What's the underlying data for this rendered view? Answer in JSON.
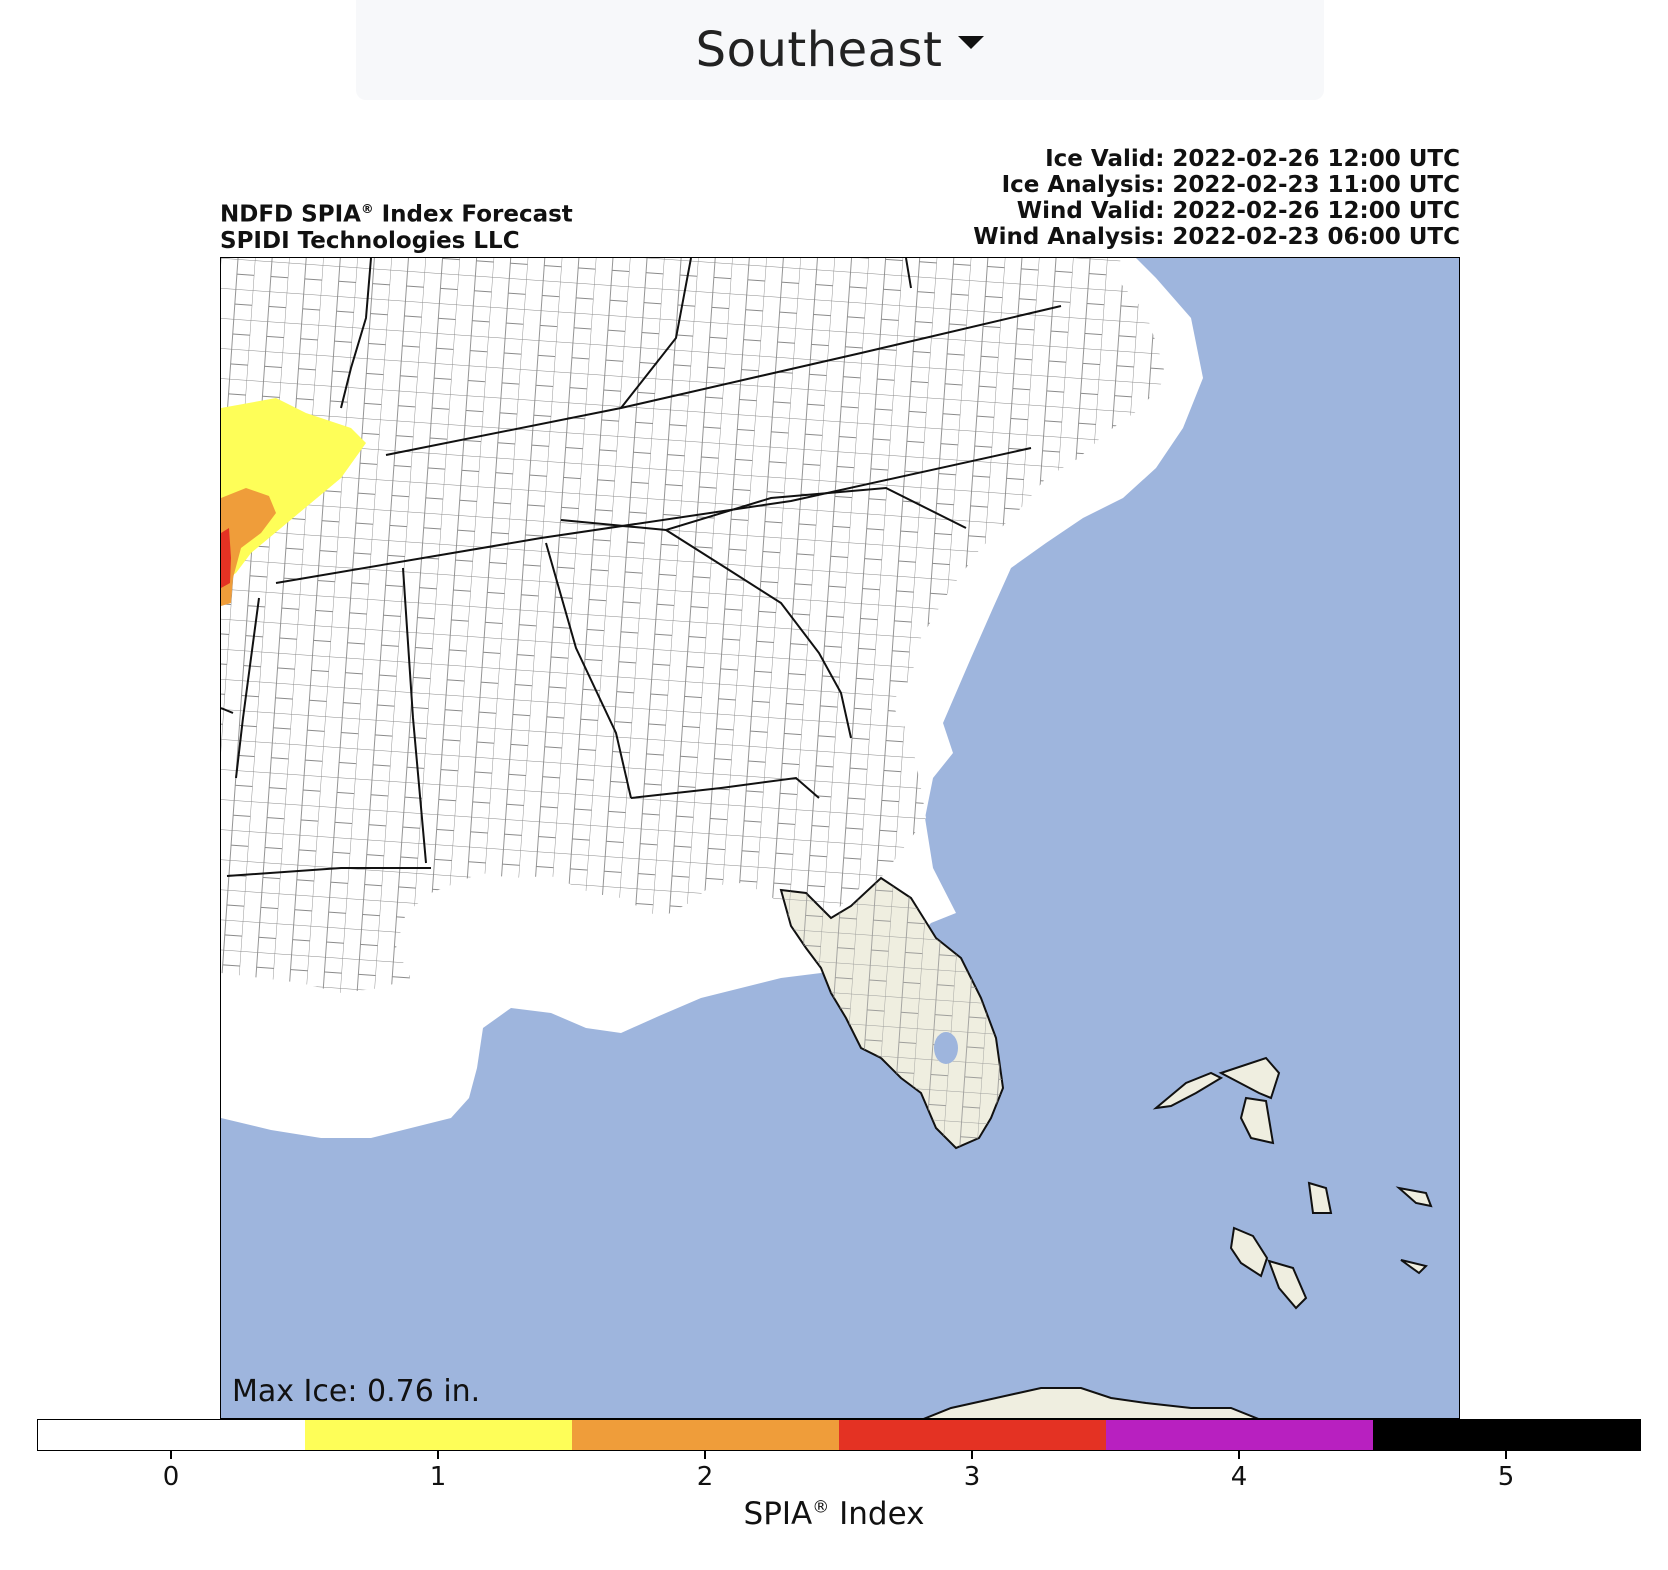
{
  "region_selector": {
    "selected": "Southeast"
  },
  "header": {
    "product_title": "NDFD SPIA",
    "product_title_rest": " Index Forecast",
    "company": "SPIDI Technologies LLC",
    "registered_mark": "®",
    "ice_valid": "Ice Valid: 2022-02-26 12:00 UTC",
    "ice_analysis": "Ice Analysis: 2022-02-23 11:00 UTC",
    "wind_valid": "Wind Valid: 2022-02-26 12:00 UTC",
    "wind_analysis": "Wind Analysis: 2022-02-23 06:00 UTC"
  },
  "map": {
    "ocean_color": "#9eb5dd",
    "land_color": "#ffffff",
    "florida_shade": "#efeee0",
    "max_ice": "Max Ice: 0.76 in."
  },
  "colorbar": {
    "title": "SPIA",
    "title_rest": " Index",
    "registered_mark": "®",
    "ticks": [
      "0",
      "1",
      "2",
      "3",
      "4",
      "5"
    ],
    "colors": [
      "#ffffff",
      "#fefe58",
      "#ef9d3a",
      "#e43223",
      "#b820c0",
      "#000000"
    ]
  }
}
